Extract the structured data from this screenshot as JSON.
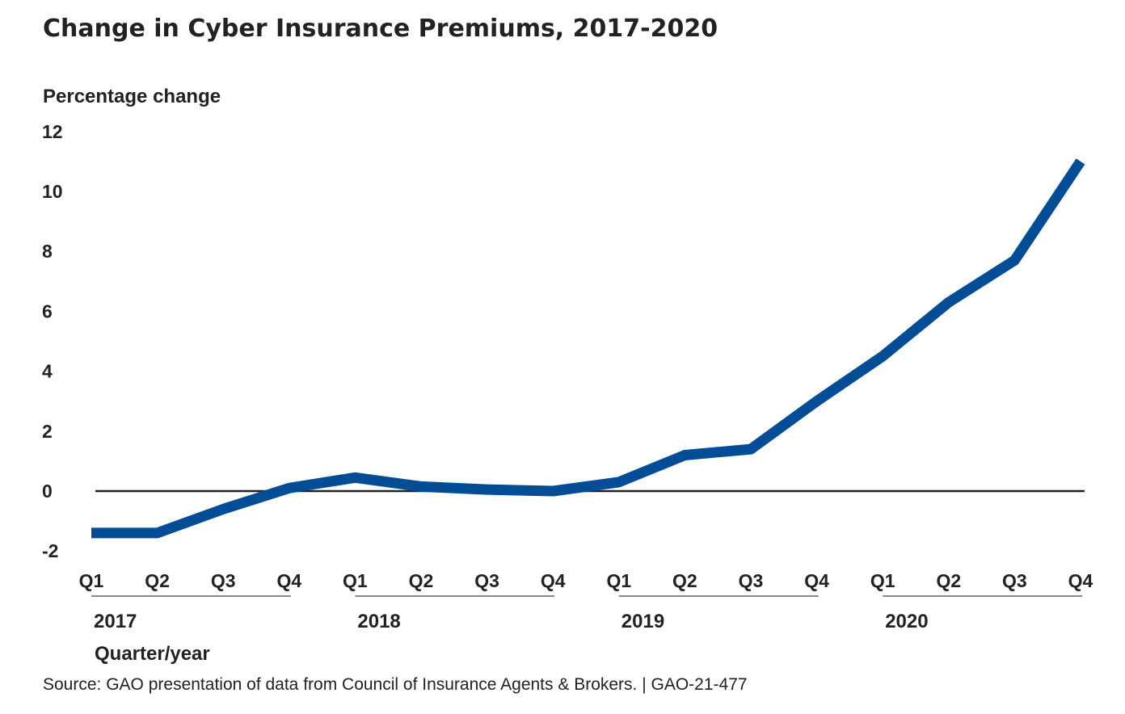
{
  "chart_data": {
    "type": "line",
    "title": "Change in Cyber Insurance Premiums, 2017-2020",
    "ylabel": "Percentage change",
    "xlabel": "Quarter/year",
    "source": "Source: GAO presentation of data from Council of Insurance Agents & Brokers.  |  GAO-21-477",
    "ylim": [
      -2,
      12
    ],
    "yticks": [
      -2,
      0,
      2,
      4,
      6,
      8,
      10,
      12
    ],
    "categories": [
      "Q1",
      "Q2",
      "Q3",
      "Q4",
      "Q1",
      "Q2",
      "Q3",
      "Q4",
      "Q1",
      "Q2",
      "Q3",
      "Q4",
      "Q1",
      "Q2",
      "Q3",
      "Q4"
    ],
    "years": [
      "2017",
      "2018",
      "2019",
      "2020"
    ],
    "series": [
      {
        "values": [
          -1.4,
          -1.4,
          -0.6,
          0.1,
          0.45,
          0.15,
          0.05,
          0.0,
          0.3,
          1.2,
          1.4,
          3.0,
          4.5,
          6.3,
          7.7,
          11.0
        ]
      }
    ],
    "grid": false,
    "zero_line": true,
    "colors": {
      "line": "#034d96",
      "zero_line": "#222222",
      "year_rule": "#888888"
    }
  }
}
